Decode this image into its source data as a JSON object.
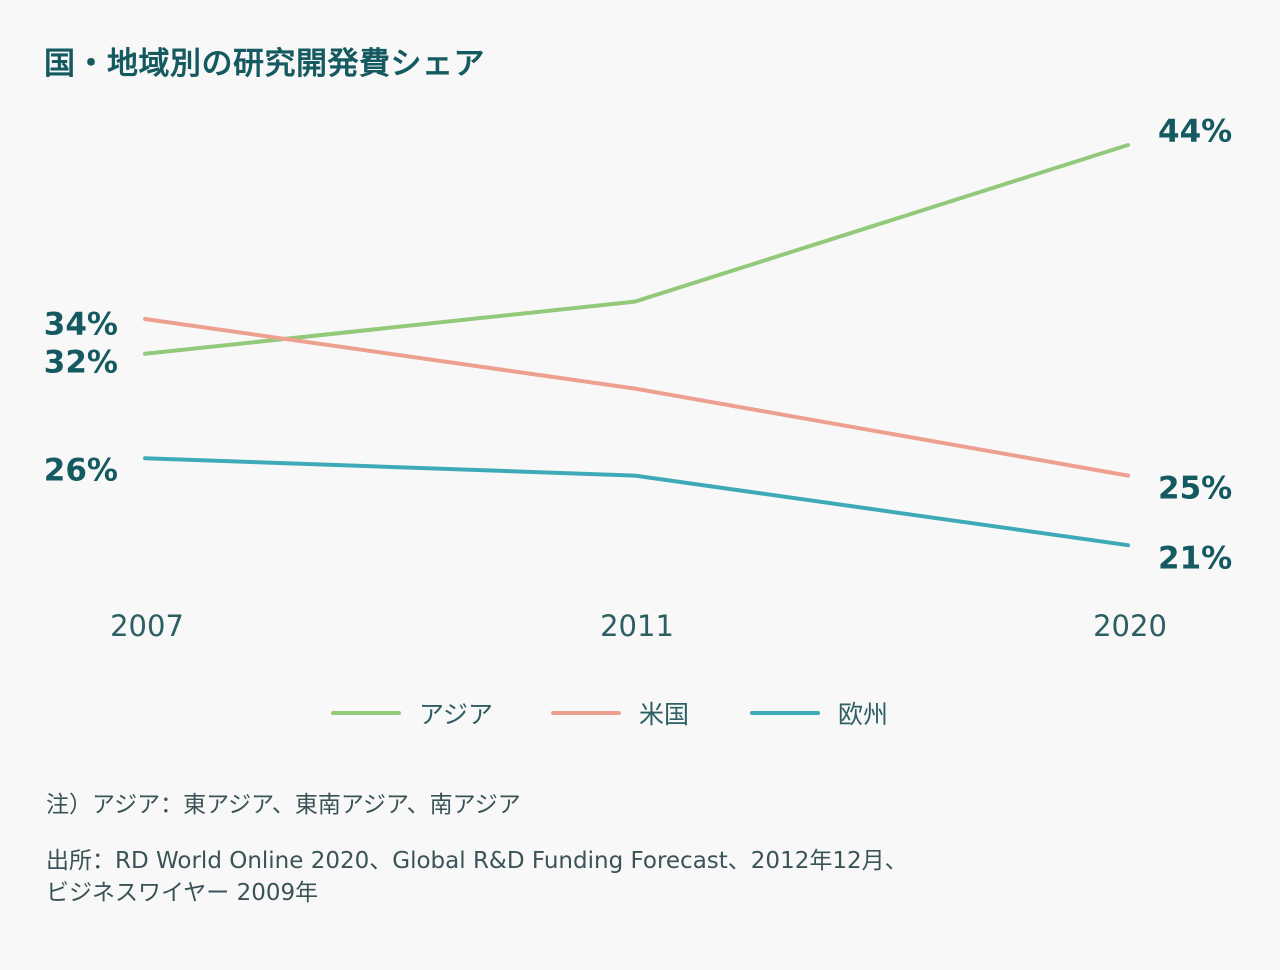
{
  "title": "国・地域別の研究開発費シェア",
  "colors": {
    "asia": "#93c97a",
    "us": "#eda090",
    "europe": "#3eaab8",
    "text": "#155a60",
    "tick": "#2d5e63",
    "note": "#3a5357",
    "background": "#f8f8f8"
  },
  "chart_data": {
    "type": "line",
    "title": "国・地域別の研究開発費シェア",
    "xlabel": "",
    "ylabel": "",
    "categories": [
      "2007",
      "2011",
      "2020"
    ],
    "unit": "%",
    "grid": false,
    "legend_position": "bottom",
    "series": [
      {
        "name": "アジア",
        "color": "#93c97a",
        "values": [
          32,
          35,
          44
        ],
        "labels": [
          "32%",
          null,
          "44%"
        ]
      },
      {
        "name": "米国",
        "color": "#eda090",
        "values": [
          34,
          30,
          25
        ],
        "labels": [
          "34%",
          null,
          "25%"
        ]
      },
      {
        "name": "欧州",
        "color": "#3eaab8",
        "values": [
          26,
          25,
          21
        ],
        "labels": [
          "26%",
          null,
          "21%"
        ]
      }
    ]
  },
  "notes": [
    "注）アジア：東アジア、東南アジア、南アジア",
    "出所：RD World Online 2020、Global R&D Funding Forecast、2012年12月、",
    "ビジネスワイヤー 2009年"
  ]
}
